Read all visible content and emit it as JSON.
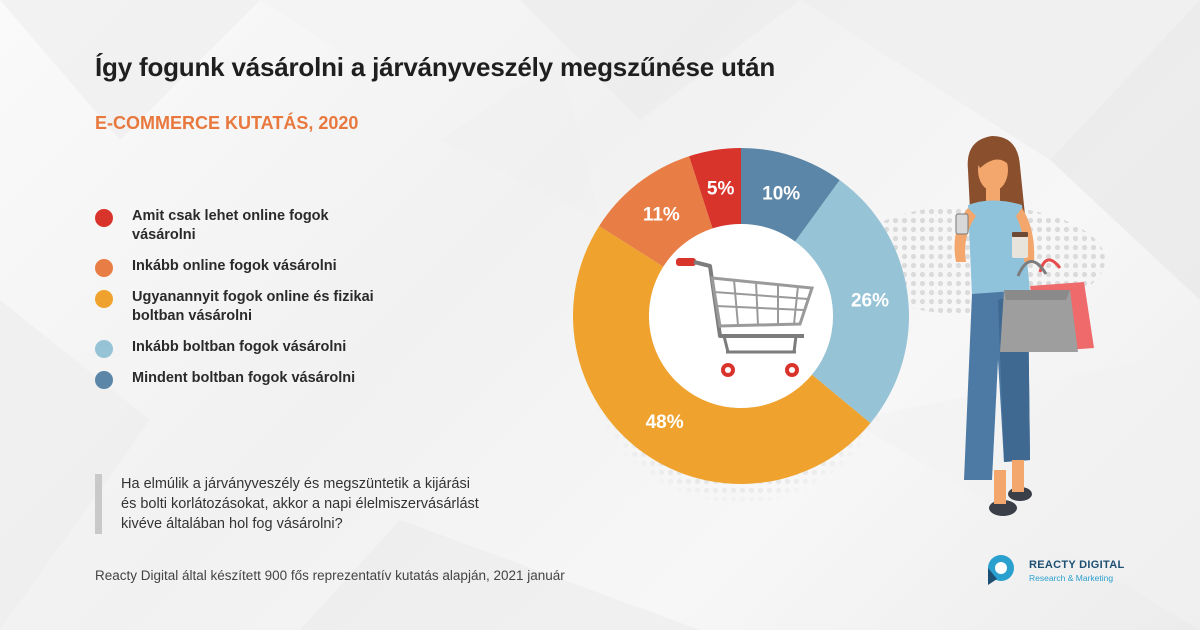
{
  "title": "Így fogunk vásárolni a járványveszély megszűnése után",
  "subtitle": "E-COMMERCE KUTATÁS, 2020",
  "chart_data": {
    "type": "pie",
    "donut": true,
    "categories": [
      "Amit csak lehet online fogok vásárolni",
      "Inkább online fogok vásárolni",
      "Ugyanannyit fogok online és fizikai boltban vásárolni",
      "Inkább boltban fogok vásárolni",
      "Mindent boltban fogok vásárolni"
    ],
    "values": [
      5,
      11,
      48,
      26,
      10
    ],
    "value_labels": [
      "5%",
      "11%",
      "48%",
      "26%",
      "10%"
    ],
    "colors": [
      "#d9342b",
      "#e87d45",
      "#efa32e",
      "#97c3d6",
      "#5b86a8"
    ],
    "legend_position": "left"
  },
  "question": "Ha elmúlik a járványveszély és megszüntetik a kijárási és bolti korlátozásokat, akkor a napi élelmiszervásárlást kivéve általában hol fog vásárolni?",
  "footer": "Reacty Digital által készített 900 fős reprezentatív kutatás alapján, 2021 január",
  "logo": {
    "name": "REACTY DIGITAL",
    "tagline": "Research & Marketing"
  },
  "icons": [
    "shopping-cart-icon",
    "woman-shopper-illustration",
    "reacty-digital-logo-icon"
  ]
}
